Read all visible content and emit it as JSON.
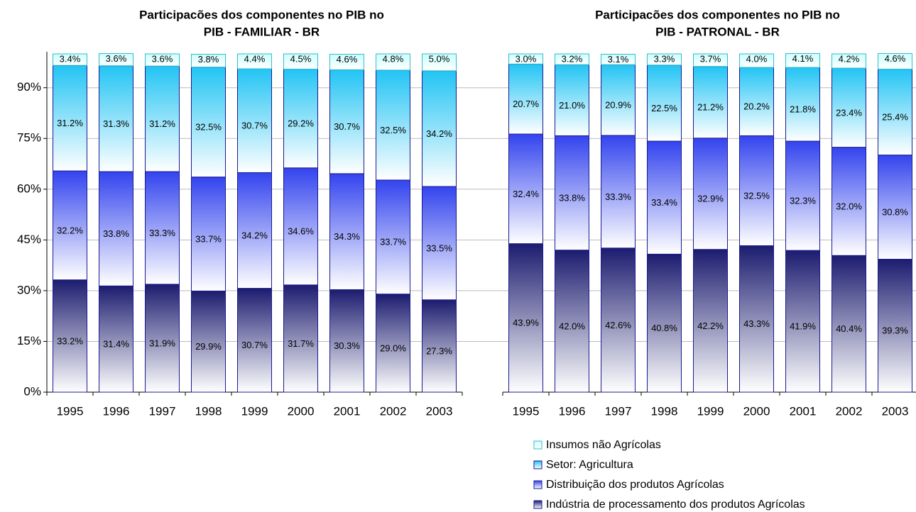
{
  "chart_data": [
    {
      "type": "stacked_bar",
      "title": [
        "Participacões dos componentes no PIB no",
        "PIB - FAMILIAR - BR"
      ],
      "categories": [
        "1995",
        "1996",
        "1997",
        "1998",
        "1999",
        "2000",
        "2001",
        "2002",
        "2003"
      ],
      "series": [
        {
          "name": "Insumos não Agrícolas",
          "color": "#ccffff",
          "values": [
            3.4,
            3.6,
            3.6,
            3.8,
            4.4,
            4.5,
            4.6,
            4.8,
            5.0
          ],
          "value_labels": [
            "3.4%",
            "3.6%",
            "3.6%",
            "3.8%",
            "4.4%",
            "4.5%",
            "4.6%",
            "4.8%",
            "5.0%"
          ]
        },
        {
          "name": "Setor: Agricultura",
          "color": "#22c4f4",
          "values": [
            31.2,
            31.3,
            31.2,
            32.5,
            30.7,
            29.2,
            30.7,
            32.5,
            34.2
          ],
          "value_labels": [
            "31.2%",
            "31.3%",
            "31.2%",
            "32.5%",
            "30.7%",
            "29.2%",
            "30.7%",
            "32.5%",
            "34.2%"
          ]
        },
        {
          "name": "Distribuição dos produtos Agrícolas",
          "color": "#3344ee",
          "values": [
            32.2,
            33.8,
            33.3,
            33.7,
            34.2,
            34.6,
            34.3,
            33.7,
            33.5
          ],
          "value_labels": [
            "32.2%",
            "33.8%",
            "33.3%",
            "33.7%",
            "34.2%",
            "34.6%",
            "34.3%",
            "33.7%",
            "33.5%"
          ]
        },
        {
          "name": "Indústria de processamento dos produtos Agrícolas",
          "color": "#1c1c70",
          "values": [
            33.2,
            31.4,
            31.9,
            29.9,
            30.7,
            31.7,
            30.3,
            29.0,
            27.3
          ],
          "value_labels": [
            "33.2%",
            "31.4%",
            "31.9%",
            "29.9%",
            "30.7%",
            "31.7%",
            "30.3%",
            "29.0%",
            "27.3%"
          ]
        }
      ],
      "ylim": [
        0,
        100
      ],
      "yticks": [
        {
          "value": 0,
          "label": "0%"
        },
        {
          "value": 15,
          "label": "15%"
        },
        {
          "value": 30,
          "label": "30%"
        },
        {
          "value": 45,
          "label": "45%"
        },
        {
          "value": 60,
          "label": "60%"
        },
        {
          "value": 75,
          "label": "75%"
        },
        {
          "value": 90,
          "label": "90%"
        }
      ],
      "grid": true
    },
    {
      "type": "stacked_bar",
      "title": [
        "Participacões dos componentes no PIB no",
        "PIB - PATRONAL - BR"
      ],
      "categories": [
        "1995",
        "1996",
        "1997",
        "1998",
        "1999",
        "2000",
        "2001",
        "2002",
        "2003"
      ],
      "series": [
        {
          "color": "#ccffff",
          "values": [
            3.0,
            3.2,
            3.1,
            3.3,
            3.7,
            4.0,
            4.1,
            4.2,
            4.6
          ],
          "value_labels": [
            "3.0%",
            "3.2%",
            "3.1%",
            "3.3%",
            "3.7%",
            "4.0%",
            "4.1%",
            "4.2%",
            "4.6%"
          ]
        },
        {
          "color": "#22c4f4",
          "values": [
            20.7,
            21.0,
            20.9,
            22.5,
            21.2,
            20.2,
            21.8,
            23.4,
            25.4
          ],
          "value_labels": [
            "20.7%",
            "21.0%",
            "20.9%",
            "22.5%",
            "21.2%",
            "20.2%",
            "21.8%",
            "23.4%",
            "25.4%"
          ]
        },
        {
          "color": "#3344ee",
          "values": [
            32.4,
            33.8,
            33.3,
            33.4,
            32.9,
            32.5,
            32.3,
            32.0,
            30.8
          ],
          "value_labels": [
            "32.4%",
            "33.8%",
            "33.3%",
            "33.4%",
            "32.9%",
            "32.5%",
            "32.3%",
            "32.0%",
            "30.8%"
          ]
        },
        {
          "color": "#1c1c70",
          "values": [
            43.9,
            42.0,
            42.6,
            40.8,
            42.2,
            43.3,
            41.9,
            40.4,
            39.3
          ],
          "value_labels": [
            "43.9%",
            "42.0%",
            "42.6%",
            "40.8%",
            "42.2%",
            "43.3%",
            "41.9%",
            "40.4%",
            "39.3%"
          ]
        }
      ],
      "ylim": [
        0,
        100
      ]
    }
  ]
}
